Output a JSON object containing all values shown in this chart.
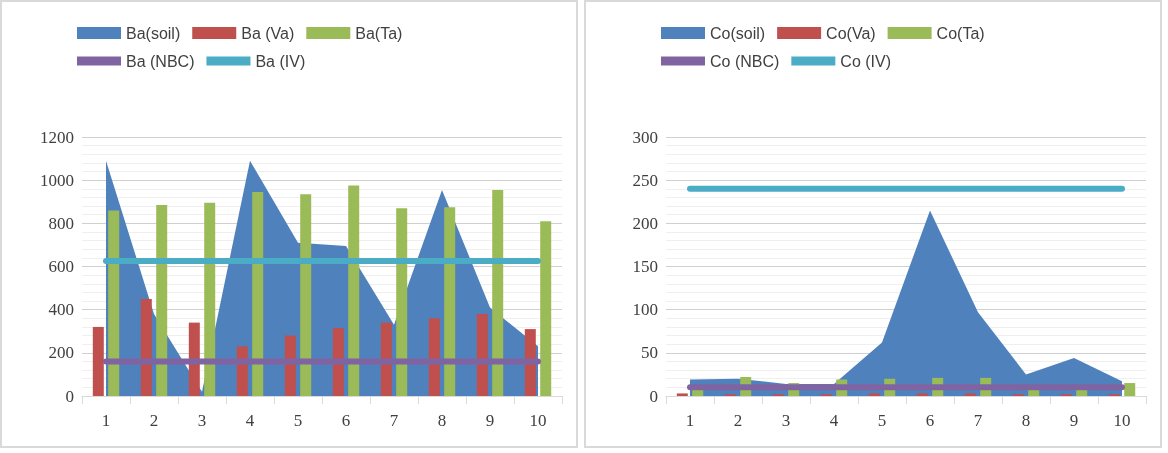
{
  "chart_data": [
    {
      "type": "bar",
      "categories": [
        "1",
        "2",
        "3",
        "4",
        "5",
        "6",
        "7",
        "8",
        "9",
        "10"
      ],
      "series": [
        {
          "name": "Ba(soil)",
          "type": "area",
          "color": "#4f81bd",
          "values": [
            1090,
            380,
            20,
            1090,
            710,
            695,
            330,
            955,
            410,
            230
          ]
        },
        {
          "name": "Ba (Va)",
          "type": "bar",
          "color": "#c0504d",
          "values": [
            320,
            450,
            340,
            230,
            280,
            315,
            340,
            360,
            380,
            310
          ]
        },
        {
          "name": "Ba(Ta)",
          "type": "bar",
          "color": "#9bbb59",
          "values": [
            860,
            885,
            895,
            945,
            935,
            975,
            870,
            875,
            955,
            810
          ]
        },
        {
          "name": "Ba (NBC)",
          "type": "line",
          "color": "#8064a2",
          "values": [
            160,
            160,
            160,
            160,
            160,
            160,
            160,
            160,
            160,
            160
          ]
        },
        {
          "name": "Ba (IV)",
          "type": "line",
          "color": "#4bacc6",
          "values": [
            625,
            625,
            625,
            625,
            625,
            625,
            625,
            625,
            625,
            625
          ]
        }
      ],
      "ylim": [
        0,
        1200
      ],
      "yticks": [
        0,
        200,
        400,
        600,
        800,
        1000,
        1200
      ],
      "grid": "y",
      "legend": "top",
      "marker": "none"
    },
    {
      "type": "bar",
      "categories": [
        "1",
        "2",
        "3",
        "4",
        "5",
        "6",
        "7",
        "8",
        "9",
        "10"
      ],
      "series": [
        {
          "name": "Co(soil)",
          "type": "area",
          "color": "#4f81bd",
          "values": [
            19,
            20,
            14,
            14,
            62,
            215,
            97,
            25,
            44,
            17
          ]
        },
        {
          "name": "Co(Va)",
          "type": "bar",
          "color": "#c0504d",
          "values": [
            3,
            2,
            2,
            2,
            3,
            3,
            3,
            2,
            2,
            2
          ]
        },
        {
          "name": "Co(Ta)",
          "type": "bar",
          "color": "#9bbb59",
          "values": [
            10,
            22,
            15,
            19,
            20,
            21,
            21,
            10,
            10,
            15
          ]
        },
        {
          "name": "Co (NBC)",
          "type": "line",
          "color": "#8064a2",
          "values": [
            10,
            10,
            10,
            10,
            10,
            10,
            10,
            10,
            10,
            10
          ]
        },
        {
          "name": "Co (IV)",
          "type": "line",
          "color": "#4bacc6",
          "values": [
            240,
            240,
            240,
            240,
            240,
            240,
            240,
            240,
            240,
            240
          ]
        }
      ],
      "ylim": [
        0,
        300
      ],
      "yticks": [
        0,
        50,
        100,
        150,
        200,
        250,
        300
      ],
      "grid": "y",
      "legend": "top",
      "marker": "none"
    }
  ]
}
